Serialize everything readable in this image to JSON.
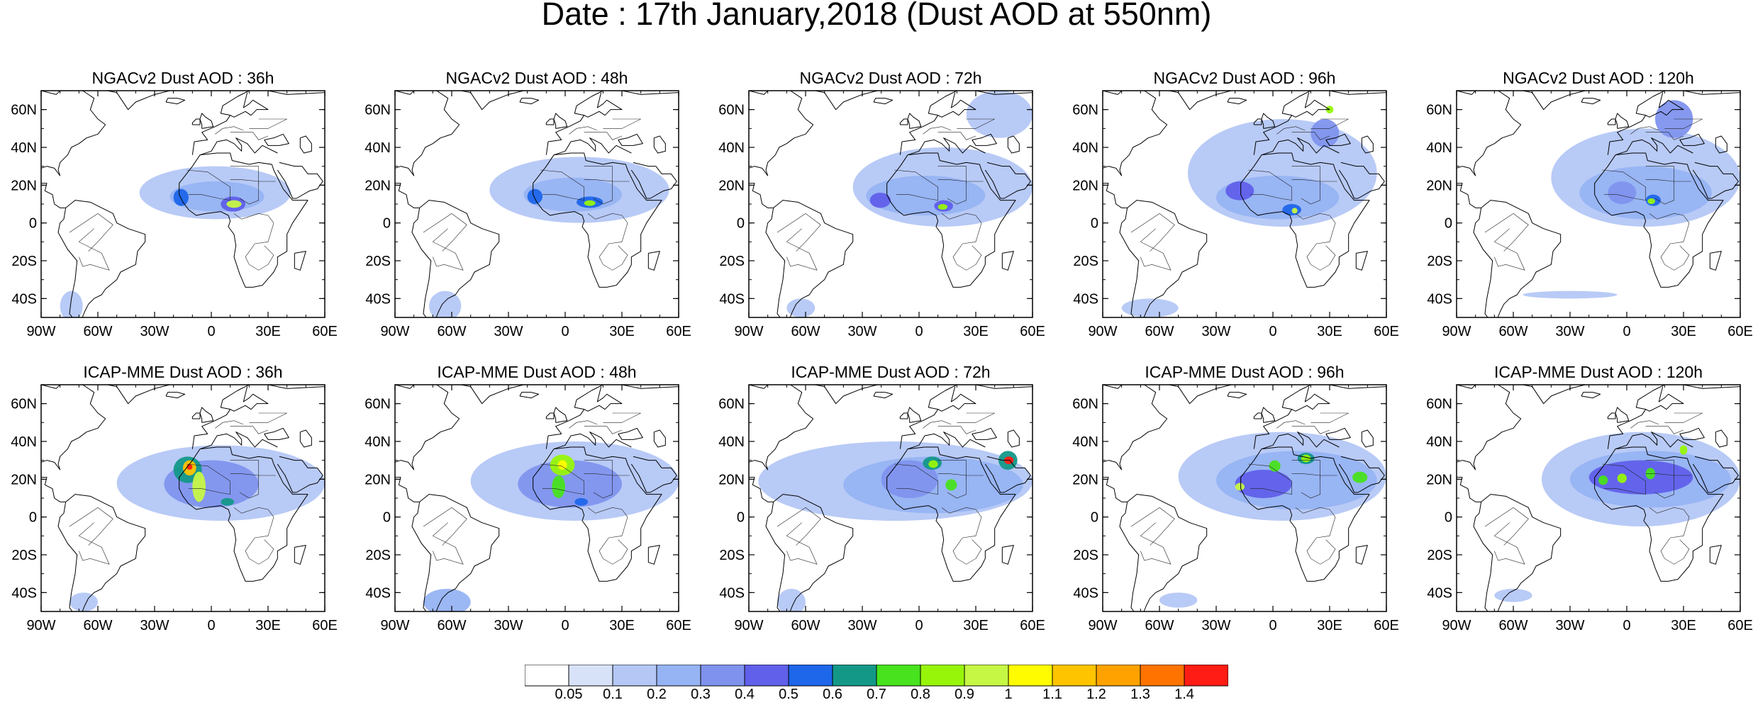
{
  "title": "Date : 17th January,2018 (Dust AOD at 550nm)",
  "map_extent": {
    "lon": [
      -90,
      60
    ],
    "lat": [
      -50,
      70
    ]
  },
  "lon_ticks": [
    "90W",
    "60W",
    "30W",
    "0",
    "30E",
    "60E"
  ],
  "lat_ticks": [
    "60N",
    "40N",
    "20N",
    "0",
    "20S",
    "40S"
  ],
  "rows": [
    {
      "model": "NGACv2",
      "panels": [
        {
          "title": "NGACv2 Dust AOD : 36h",
          "plumes": [
            {
              "lon": [
                -38,
                42
              ],
              "lat": [
                2,
                30
              ],
              "level": 0.1
            },
            {
              "lon": [
                -22,
                28
              ],
              "lat": [
                6,
                22
              ],
              "level": 0.2
            },
            {
              "lon": [
                -20,
                -12
              ],
              "lat": [
                9,
                18
              ],
              "level": 0.5
            },
            {
              "lon": [
                5,
                18
              ],
              "lat": [
                6,
                14
              ],
              "level": 0.4
            },
            {
              "lon": [
                8,
                16
              ],
              "lat": [
                8,
                12
              ],
              "level": 0.9
            },
            {
              "lon": [
                -80,
                -68
              ],
              "lat": [
                -52,
                -36
              ],
              "level": 0.1
            }
          ]
        },
        {
          "title": "NGACv2 Dust AOD : 48h",
          "plumes": [
            {
              "lon": [
                -40,
                55
              ],
              "lat": [
                0,
                35
              ],
              "level": 0.1
            },
            {
              "lon": [
                -22,
                30
              ],
              "lat": [
                6,
                24
              ],
              "level": 0.2
            },
            {
              "lon": [
                -20,
                -12
              ],
              "lat": [
                10,
                18
              ],
              "level": 0.5
            },
            {
              "lon": [
                6,
                20
              ],
              "lat": [
                8,
                14
              ],
              "level": 0.5
            },
            {
              "lon": [
                10,
                16
              ],
              "lat": [
                9,
                12
              ],
              "level": 0.8
            },
            {
              "lon": [
                -72,
                -55
              ],
              "lat": [
                -52,
                -36
              ],
              "level": 0.1
            }
          ]
        },
        {
          "title": "NGACv2 Dust AOD : 72h",
          "plumes": [
            {
              "lon": [
                -35,
                60
              ],
              "lat": [
                -2,
                40
              ],
              "level": 0.1
            },
            {
              "lon": [
                -28,
                35
              ],
              "lat": [
                4,
                25
              ],
              "level": 0.2
            },
            {
              "lon": [
                -26,
                -15
              ],
              "lat": [
                8,
                16
              ],
              "level": 0.4
            },
            {
              "lon": [
                8,
                18
              ],
              "lat": [
                6,
                12
              ],
              "level": 0.4
            },
            {
              "lon": [
                10,
                15
              ],
              "lat": [
                7,
                10
              ],
              "level": 0.8
            },
            {
              "lon": [
                25,
                60
              ],
              "lat": [
                45,
                70
              ],
              "level": 0.1
            },
            {
              "lon": [
                -70,
                -55
              ],
              "lat": [
                -50,
                -40
              ],
              "level": 0.1
            }
          ]
        },
        {
          "title": "NGACv2 Dust AOD : 96h",
          "plumes": [
            {
              "lon": [
                -45,
                55
              ],
              "lat": [
                -2,
                55
              ],
              "level": 0.1
            },
            {
              "lon": [
                -30,
                35
              ],
              "lat": [
                2,
                25
              ],
              "level": 0.2
            },
            {
              "lon": [
                -25,
                -10
              ],
              "lat": [
                12,
                22
              ],
              "level": 0.4
            },
            {
              "lon": [
                5,
                15
              ],
              "lat": [
                4,
                10
              ],
              "level": 0.5
            },
            {
              "lon": [
                10,
                13
              ],
              "lat": [
                5,
                8
              ],
              "level": 0.9
            },
            {
              "lon": [
                20,
                35
              ],
              "lat": [
                40,
                55
              ],
              "level": 0.3
            },
            {
              "lon": [
                28,
                32
              ],
              "lat": [
                58,
                62
              ],
              "level": 0.8
            },
            {
              "lon": [
                -80,
                -50
              ],
              "lat": [
                -50,
                -40
              ],
              "level": 0.1
            }
          ]
        },
        {
          "title": "NGACv2 Dust AOD : 120h",
          "plumes": [
            {
              "lon": [
                -40,
                60
              ],
              "lat": [
                -2,
                50
              ],
              "level": 0.1
            },
            {
              "lon": [
                -25,
                45
              ],
              "lat": [
                2,
                30
              ],
              "level": 0.2
            },
            {
              "lon": [
                -10,
                5
              ],
              "lat": [
                10,
                22
              ],
              "level": 0.3
            },
            {
              "lon": [
                10,
                18
              ],
              "lat": [
                9,
                15
              ],
              "level": 0.5
            },
            {
              "lon": [
                11,
                15
              ],
              "lat": [
                10,
                13
              ],
              "level": 0.8
            },
            {
              "lon": [
                15,
                35
              ],
              "lat": [
                45,
                65
              ],
              "level": 0.3
            },
            {
              "lon": [
                -55,
                -5
              ],
              "lat": [
                -40,
                -36
              ],
              "level": 0.1
            }
          ]
        }
      ]
    },
    {
      "model": "ICAP-MME",
      "panels": [
        {
          "title": "ICAP-MME Dust AOD : 36h",
          "plumes": [
            {
              "lon": [
                -50,
                60
              ],
              "lat": [
                -2,
                38
              ],
              "level": 0.1
            },
            {
              "lon": [
                -25,
                25
              ],
              "lat": [
                5,
                30
              ],
              "level": 0.3
            },
            {
              "lon": [
                -20,
                -5
              ],
              "lat": [
                18,
                32
              ],
              "level": 0.6
            },
            {
              "lon": [
                -15,
                -8
              ],
              "lat": [
                22,
                30
              ],
              "level": 1.1
            },
            {
              "lon": [
                -13,
                -10
              ],
              "lat": [
                25,
                28
              ],
              "level": 1.4
            },
            {
              "lon": [
                -10,
                -3
              ],
              "lat": [
                8,
                24
              ],
              "level": 0.9
            },
            {
              "lon": [
                5,
                12
              ],
              "lat": [
                6,
                10
              ],
              "level": 0.6
            },
            {
              "lon": [
                -75,
                -60
              ],
              "lat": [
                -50,
                -40
              ],
              "level": 0.1
            }
          ]
        },
        {
          "title": "ICAP-MME Dust AOD : 48h",
          "plumes": [
            {
              "lon": [
                -50,
                60
              ],
              "lat": [
                -2,
                40
              ],
              "level": 0.1
            },
            {
              "lon": [
                -25,
                30
              ],
              "lat": [
                5,
                30
              ],
              "level": 0.3
            },
            {
              "lon": [
                -8,
                5
              ],
              "lat": [
                22,
                33
              ],
              "level": 0.8
            },
            {
              "lon": [
                -4,
                1
              ],
              "lat": [
                25,
                30
              ],
              "level": 1.0
            },
            {
              "lon": [
                -7,
                0
              ],
              "lat": [
                10,
                22
              ],
              "level": 0.7
            },
            {
              "lon": [
                5,
                12
              ],
              "lat": [
                6,
                10
              ],
              "level": 0.5
            },
            {
              "lon": [
                -75,
                -50
              ],
              "lat": [
                -52,
                -38
              ],
              "level": 0.2
            }
          ]
        },
        {
          "title": "ICAP-MME Dust AOD : 72h",
          "plumes": [
            {
              "lon": [
                -85,
                60
              ],
              "lat": [
                -2,
                40
              ],
              "level": 0.1
            },
            {
              "lon": [
                -40,
                55
              ],
              "lat": [
                2,
                32
              ],
              "level": 0.2
            },
            {
              "lon": [
                -20,
                10
              ],
              "lat": [
                10,
                30
              ],
              "level": 0.3
            },
            {
              "lon": [
                2,
                12
              ],
              "lat": [
                25,
                32
              ],
              "level": 0.6
            },
            {
              "lon": [
                5,
                10
              ],
              "lat": [
                26,
                30
              ],
              "level": 0.8
            },
            {
              "lon": [
                14,
                20
              ],
              "lat": [
                14,
                20
              ],
              "level": 0.7
            },
            {
              "lon": [
                42,
                52
              ],
              "lat": [
                25,
                35
              ],
              "level": 0.6
            },
            {
              "lon": [
                45,
                50
              ],
              "lat": [
                28,
                32
              ],
              "level": 1.4
            },
            {
              "lon": [
                -75,
                -60
              ],
              "lat": [
                -52,
                -38
              ],
              "level": 0.1
            }
          ]
        },
        {
          "title": "ICAP-MME Dust AOD : 96h",
          "plumes": [
            {
              "lon": [
                -50,
                60
              ],
              "lat": [
                -2,
                45
              ],
              "level": 0.1
            },
            {
              "lon": [
                -30,
                55
              ],
              "lat": [
                4,
                35
              ],
              "level": 0.2
            },
            {
              "lon": [
                -20,
                10
              ],
              "lat": [
                10,
                25
              ],
              "level": 0.4
            },
            {
              "lon": [
                13,
                22
              ],
              "lat": [
                28,
                34
              ],
              "level": 0.6
            },
            {
              "lon": [
                15,
                20
              ],
              "lat": [
                29,
                33
              ],
              "level": 0.8
            },
            {
              "lon": [
                -2,
                4
              ],
              "lat": [
                24,
                30
              ],
              "level": 0.7
            },
            {
              "lon": [
                42,
                50
              ],
              "lat": [
                18,
                24
              ],
              "level": 0.7
            },
            {
              "lon": [
                -20,
                -15
              ],
              "lat": [
                14,
                18
              ],
              "level": 0.9
            },
            {
              "lon": [
                -60,
                -40
              ],
              "lat": [
                -48,
                -40
              ],
              "level": 0.1
            }
          ]
        },
        {
          "title": "ICAP-MME Dust AOD : 120h",
          "plumes": [
            {
              "lon": [
                -45,
                60
              ],
              "lat": [
                -5,
                45
              ],
              "level": 0.1
            },
            {
              "lon": [
                -30,
                55
              ],
              "lat": [
                5,
                35
              ],
              "level": 0.2
            },
            {
              "lon": [
                -20,
                35
              ],
              "lat": [
                12,
                30
              ],
              "level": 0.4
            },
            {
              "lon": [
                -15,
                -10
              ],
              "lat": [
                17,
                22
              ],
              "level": 0.7
            },
            {
              "lon": [
                -5,
                0
              ],
              "lat": [
                18,
                23
              ],
              "level": 0.8
            },
            {
              "lon": [
                10,
                15
              ],
              "lat": [
                20,
                26
              ],
              "level": 0.7
            },
            {
              "lon": [
                28,
                32
              ],
              "lat": [
                33,
                38
              ],
              "level": 0.8
            },
            {
              "lon": [
                -70,
                -50
              ],
              "lat": [
                -45,
                -38
              ],
              "level": 0.1
            }
          ]
        }
      ]
    }
  ],
  "colorbar": {
    "labels": [
      "0.05",
      "0.1",
      "0.2",
      "0.3",
      "0.4",
      "0.5",
      "0.6",
      "0.7",
      "0.8",
      "0.9",
      "1",
      "1.1",
      "1.2",
      "1.3",
      "1.4"
    ],
    "colors": [
      "#ffffff",
      "#d7e2f9",
      "#b4c7f5",
      "#96b3f3",
      "#7f93ee",
      "#6060ea",
      "#1e66ea",
      "#139888",
      "#48e21e",
      "#97f50a",
      "#c6f745",
      "#fffc00",
      "#ffc400",
      "#ffa200",
      "#ff7300",
      "#ff1c14"
    ],
    "thresholds": [
      0.05,
      0.1,
      0.2,
      0.3,
      0.4,
      0.5,
      0.6,
      0.7,
      0.8,
      0.9,
      1.0,
      1.1,
      1.2,
      1.3,
      1.4
    ]
  }
}
